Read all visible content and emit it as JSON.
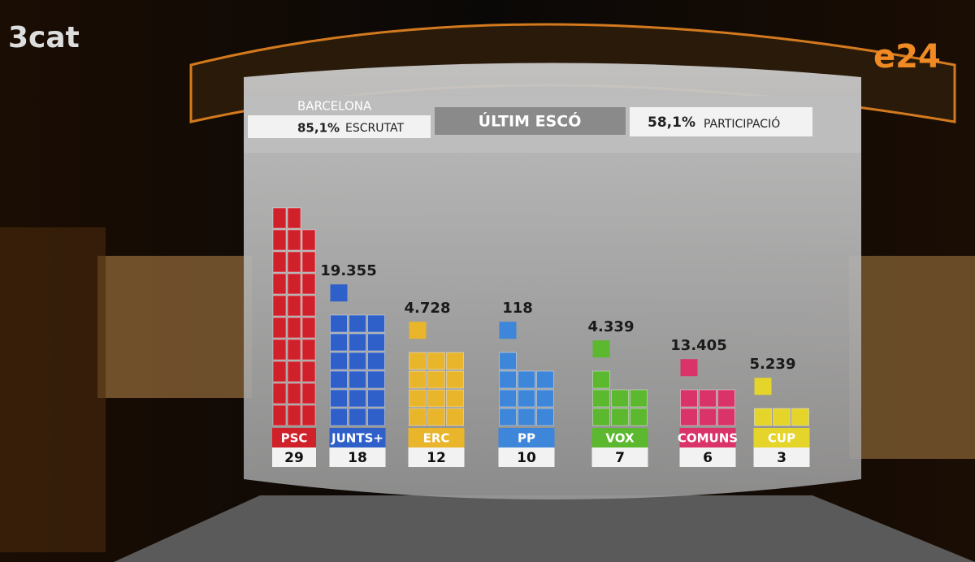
{
  "logo": "3cat",
  "channel": "e24",
  "header": {
    "place": "BARCELONA",
    "counted": "85,1%",
    "counted_label": "ESCRUTAT",
    "center": "ÚLTIM ESCÓ",
    "turnout": "58,1%",
    "turnout_label": "PARTICIPACIÓ"
  },
  "chart_data": {
    "type": "seat-grid",
    "categories": [
      "PSC",
      "JUNTS+",
      "ERC",
      "PP",
      "VOX",
      "COMUNS",
      "CUP"
    ],
    "colors": [
      "#d0202a",
      "#2f5fc9",
      "#e9b52b",
      "#3d86d9",
      "#5cb82e",
      "#d9336a",
      "#e5d42a"
    ],
    "values": [
      29,
      18,
      12,
      10,
      7,
      6,
      3
    ],
    "next_seat_votes": [
      null,
      19355,
      4728,
      118,
      4339,
      13405,
      5239
    ],
    "next_seat_labels": [
      null,
      "19.355",
      "4.728",
      "118",
      "4.339",
      "13.405",
      "5.239"
    ]
  }
}
